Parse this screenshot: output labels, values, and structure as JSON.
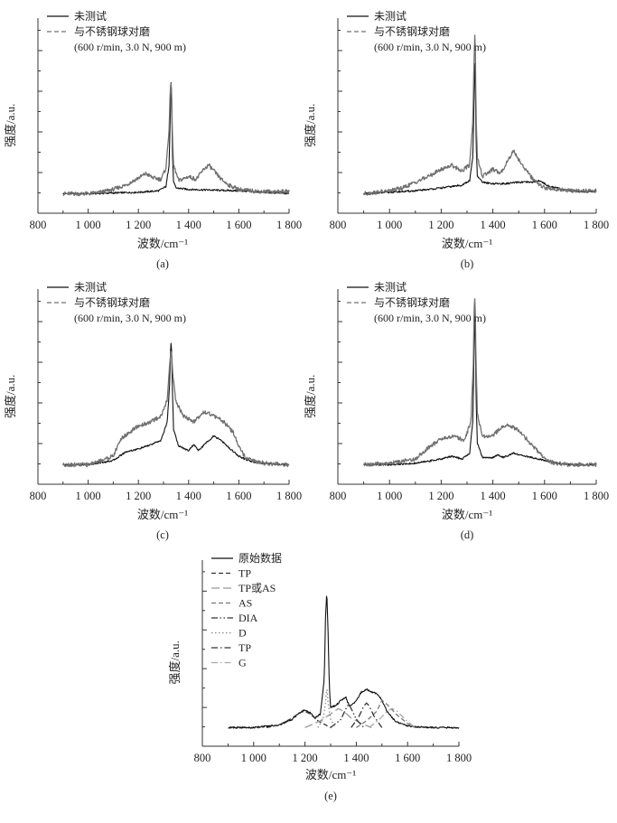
{
  "chart_data": [
    {
      "id": "a",
      "type": "line",
      "panel_label": "(a)",
      "xlabel": "波数/cm⁻¹",
      "ylabel": "强度/a.u.",
      "xlim": [
        800,
        1800
      ],
      "ylim": [
        0,
        1.2
      ],
      "x_ticks": [
        800,
        1000,
        1200,
        1400,
        1600,
        1800
      ],
      "x_tick_labels": [
        "800",
        "1 000",
        "1 200",
        "1 400",
        "1 600",
        "1 800"
      ],
      "condition": "(600 r/min, 3.0 N, 900 m)",
      "series": [
        {
          "name": "未测试",
          "style": "solid",
          "color": "#111111",
          "x": [
            900,
            1000,
            1100,
            1200,
            1280,
            1310,
            1322,
            1327,
            1331,
            1335,
            1340,
            1350,
            1400,
            1500,
            1600,
            1700,
            1800
          ],
          "y": [
            0.0,
            0.0,
            0.005,
            0.01,
            0.02,
            0.05,
            0.2,
            0.55,
            0.85,
            0.3,
            0.08,
            0.04,
            0.03,
            0.025,
            0.02,
            0.01,
            0.0
          ]
        },
        {
          "name": "与不锈钢球对磨",
          "style": "dashed",
          "color": "#707070",
          "x": [
            900,
            1000,
            1050,
            1100,
            1150,
            1200,
            1230,
            1260,
            1290,
            1310,
            1322,
            1327,
            1331,
            1335,
            1340,
            1360,
            1400,
            1430,
            1460,
            1480,
            1500,
            1530,
            1560,
            1600,
            1650,
            1700,
            1800
          ],
          "y": [
            0.0,
            0.0,
            0.01,
            0.03,
            0.06,
            0.11,
            0.14,
            0.11,
            0.1,
            0.18,
            0.45,
            0.72,
            0.8,
            0.42,
            0.2,
            0.09,
            0.12,
            0.1,
            0.17,
            0.2,
            0.16,
            0.1,
            0.06,
            0.03,
            0.02,
            0.015,
            0.015
          ]
        }
      ]
    },
    {
      "id": "b",
      "type": "line",
      "panel_label": "(b)",
      "xlabel": "波数/cm⁻¹",
      "ylabel": "强度/a.u.",
      "xlim": [
        800,
        1800
      ],
      "ylim": [
        0,
        1.2
      ],
      "x_ticks": [
        800,
        1000,
        1200,
        1400,
        1600,
        1800
      ],
      "x_tick_labels": [
        "800",
        "1 000",
        "1 200",
        "1 400",
        "1 600",
        "1 800"
      ],
      "condition": "(600 r/min, 3.0 N, 900 m)",
      "series": [
        {
          "name": "未测试",
          "style": "solid",
          "color": "#111111",
          "x": [
            900,
            1000,
            1100,
            1200,
            1280,
            1310,
            1322,
            1327,
            1331,
            1335,
            1340,
            1360,
            1400,
            1450,
            1500,
            1550,
            1580,
            1620,
            1700,
            1800
          ],
          "y": [
            0.0,
            0.01,
            0.02,
            0.04,
            0.06,
            0.09,
            0.25,
            0.62,
            1.0,
            0.35,
            0.12,
            0.08,
            0.07,
            0.07,
            0.08,
            0.08,
            0.09,
            0.05,
            0.02,
            0.01
          ]
        },
        {
          "name": "与不锈钢球对磨",
          "style": "dashed",
          "color": "#707070",
          "x": [
            900,
            1000,
            1050,
            1100,
            1150,
            1200,
            1240,
            1280,
            1310,
            1322,
            1327,
            1331,
            1335,
            1340,
            1360,
            1400,
            1430,
            1460,
            1480,
            1500,
            1530,
            1560,
            1600,
            1650,
            1700,
            1800
          ],
          "y": [
            0.0,
            0.02,
            0.04,
            0.08,
            0.12,
            0.17,
            0.2,
            0.16,
            0.2,
            0.5,
            0.9,
            1.18,
            0.55,
            0.25,
            0.12,
            0.17,
            0.14,
            0.24,
            0.3,
            0.24,
            0.16,
            0.09,
            0.04,
            0.03,
            0.02,
            0.02
          ]
        }
      ]
    },
    {
      "id": "c",
      "type": "line",
      "panel_label": "(c)",
      "xlabel": "波数/cm⁻¹",
      "ylabel": "强度/a.u.",
      "xlim": [
        800,
        1800
      ],
      "ylim": [
        0,
        1.2
      ],
      "x_ticks": [
        800,
        1000,
        1200,
        1400,
        1600,
        1800
      ],
      "x_tick_labels": [
        "800",
        "1 000",
        "1 200",
        "1 400",
        "1 600",
        "1 800"
      ],
      "condition": "(600 r/min, 3.0 N, 900 m)",
      "series": [
        {
          "name": "未测试",
          "style": "solid",
          "color": "#111111",
          "x": [
            900,
            1000,
            1100,
            1150,
            1200,
            1250,
            1290,
            1315,
            1324,
            1328,
            1331,
            1335,
            1340,
            1360,
            1400,
            1420,
            1440,
            1480,
            1500,
            1530,
            1560,
            1600,
            1650,
            1700,
            1800
          ],
          "y": [
            0.0,
            0.0,
            0.03,
            0.09,
            0.11,
            0.14,
            0.17,
            0.3,
            0.55,
            0.8,
            0.88,
            0.55,
            0.25,
            0.13,
            0.1,
            0.14,
            0.1,
            0.17,
            0.2,
            0.17,
            0.12,
            0.06,
            0.02,
            0.01,
            0.0
          ]
        },
        {
          "name": "与不锈钢球对磨",
          "style": "dashed",
          "color": "#707070",
          "x": [
            900,
            1000,
            1100,
            1130,
            1160,
            1200,
            1250,
            1290,
            1315,
            1325,
            1331,
            1337,
            1350,
            1380,
            1420,
            1460,
            1480,
            1500,
            1540,
            1580,
            1600,
            1630,
            1700,
            1800
          ],
          "y": [
            0.0,
            0.0,
            0.06,
            0.18,
            0.22,
            0.27,
            0.3,
            0.34,
            0.45,
            0.72,
            0.82,
            0.62,
            0.44,
            0.34,
            0.3,
            0.37,
            0.36,
            0.34,
            0.3,
            0.22,
            0.12,
            0.04,
            0.01,
            0.0
          ]
        }
      ]
    },
    {
      "id": "d",
      "type": "line",
      "panel_label": "(d)",
      "xlabel": "波数/cm⁻¹",
      "ylabel": "强度/a.u.",
      "xlim": [
        800,
        1800
      ],
      "ylim": [
        0,
        1.2
      ],
      "x_ticks": [
        800,
        1000,
        1200,
        1400,
        1600,
        1800
      ],
      "x_tick_labels": [
        "800",
        "1 000",
        "1 200",
        "1 400",
        "1 600",
        "1 800"
      ],
      "condition": "(600 r/min, 3.0 N, 900 m)",
      "series": [
        {
          "name": "未测试",
          "style": "solid",
          "color": "#111111",
          "x": [
            900,
            1000,
            1100,
            1200,
            1240,
            1280,
            1310,
            1322,
            1327,
            1331,
            1335,
            1340,
            1360,
            1400,
            1420,
            1440,
            1480,
            1500,
            1550,
            1600,
            1650,
            1700,
            1800
          ],
          "y": [
            0.0,
            0.0,
            0.01,
            0.04,
            0.06,
            0.04,
            0.08,
            0.3,
            0.75,
            1.15,
            0.45,
            0.15,
            0.05,
            0.05,
            0.07,
            0.05,
            0.08,
            0.07,
            0.05,
            0.03,
            0.01,
            0.0,
            0.0
          ]
        },
        {
          "name": "与不锈钢球对磨",
          "style": "dashed",
          "color": "#707070",
          "x": [
            900,
            1000,
            1100,
            1150,
            1200,
            1250,
            1290,
            1315,
            1324,
            1328,
            1331,
            1335,
            1340,
            1360,
            1400,
            1430,
            1460,
            1480,
            1500,
            1540,
            1580,
            1620,
            1650,
            1700,
            1800
          ],
          "y": [
            0.0,
            0.01,
            0.04,
            0.12,
            0.18,
            0.2,
            0.17,
            0.3,
            0.7,
            1.1,
            1.18,
            0.7,
            0.35,
            0.2,
            0.2,
            0.26,
            0.28,
            0.26,
            0.24,
            0.16,
            0.08,
            0.02,
            0.01,
            0.0,
            0.0
          ]
        }
      ]
    },
    {
      "id": "e",
      "type": "line",
      "panel_label": "(e)",
      "xlabel": "波数/cm⁻¹",
      "ylabel": "强度/a.u.",
      "xlim": [
        800,
        1800
      ],
      "ylim": [
        0,
        1.2
      ],
      "x_ticks": [
        800,
        1000,
        1200,
        1400,
        1600,
        1800
      ],
      "x_tick_labels": [
        "800",
        "1 000",
        "1 200",
        "1 400",
        "1 600",
        "1 800"
      ],
      "series": [
        {
          "name": "原始数据",
          "style": "solid",
          "color": "#111111",
          "x": [
            900,
            1000,
            1050,
            1100,
            1150,
            1180,
            1200,
            1220,
            1240,
            1260,
            1275,
            1280,
            1285,
            1290,
            1295,
            1300,
            1320,
            1340,
            1360,
            1370,
            1380,
            1400,
            1420,
            1440,
            1460,
            1480,
            1500,
            1520,
            1550,
            1600,
            1700,
            1800
          ],
          "y": [
            0.0,
            0.0,
            0.01,
            0.02,
            0.06,
            0.11,
            0.13,
            0.11,
            0.07,
            0.1,
            0.35,
            0.8,
            1.0,
            0.7,
            0.3,
            0.15,
            0.16,
            0.2,
            0.22,
            0.17,
            0.16,
            0.2,
            0.26,
            0.28,
            0.26,
            0.25,
            0.2,
            0.12,
            0.05,
            0.01,
            0.0,
            0.0
          ]
        },
        {
          "name": "TP",
          "style": "dashed",
          "color": "#333333",
          "x": [
            1050,
            1100,
            1150,
            1180,
            1200,
            1220,
            1250,
            1300
          ],
          "y": [
            0.0,
            0.02,
            0.07,
            0.11,
            0.12,
            0.1,
            0.05,
            0.0
          ]
        },
        {
          "name": "TP或AS",
          "style": "longdash",
          "color": "#999999",
          "x": [
            1200,
            1260,
            1300,
            1330,
            1350,
            1380,
            1420,
            1460
          ],
          "y": [
            0.0,
            0.05,
            0.1,
            0.14,
            0.12,
            0.07,
            0.03,
            0.0
          ]
        },
        {
          "name": "AS",
          "style": "dashed",
          "color": "#777777",
          "x": [
            1400,
            1440,
            1480,
            1500,
            1520,
            1560,
            1600,
            1630
          ],
          "y": [
            0.0,
            0.05,
            0.12,
            0.2,
            0.17,
            0.09,
            0.03,
            0.0
          ]
        },
        {
          "name": "DIA",
          "style": "dashdotdot",
          "color": "#333333",
          "x": [
            1300,
            1340,
            1360,
            1370,
            1380,
            1400,
            1430
          ],
          "y": [
            0.0,
            0.06,
            0.14,
            0.17,
            0.14,
            0.06,
            0.0
          ]
        },
        {
          "name": "D",
          "style": "dotted",
          "color": "#888888",
          "x": [
            1250,
            1270,
            1280,
            1285,
            1290,
            1300,
            1320
          ],
          "y": [
            0.0,
            0.06,
            0.18,
            0.3,
            0.18,
            0.06,
            0.0
          ]
        },
        {
          "name": "TP",
          "style": "dashdot",
          "color": "#333333",
          "x": [
            1380,
            1410,
            1430,
            1440,
            1450,
            1470,
            1500
          ],
          "y": [
            0.0,
            0.08,
            0.16,
            0.18,
            0.16,
            0.08,
            0.0
          ]
        },
        {
          "name": "G",
          "style": "dashdot",
          "color": "#aaaaaa",
          "x": [
            1450,
            1490,
            1520,
            1540,
            1560,
            1590,
            1630
          ],
          "y": [
            0.0,
            0.06,
            0.12,
            0.14,
            0.12,
            0.06,
            0.0
          ]
        }
      ]
    }
  ]
}
